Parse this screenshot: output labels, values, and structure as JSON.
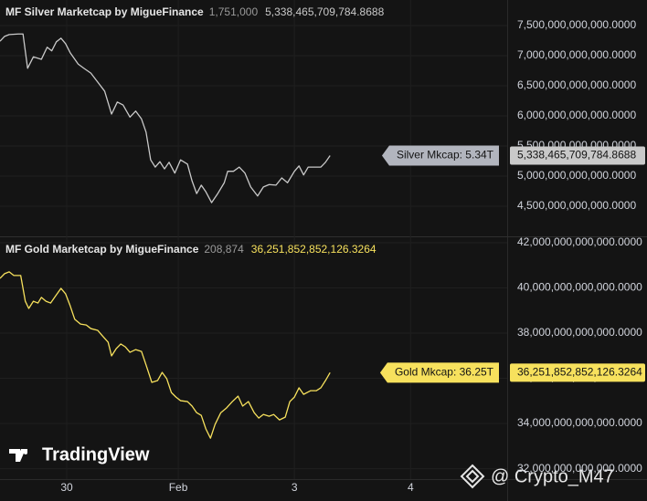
{
  "chart_data": [
    {
      "type": "line",
      "title": "MF Silver Marketcap by MigueFinance",
      "header_values": [
        "1,751,000",
        "5,338,465,709,784.8688"
      ],
      "series_label": "Silver Mkcap: 5.34T",
      "price_label": "5,338,465,709,784.8688",
      "color": "#c9c9c9",
      "grid": true,
      "x": [
        -0.58,
        -0.54,
        -0.5,
        -0.42,
        -0.38,
        -0.34,
        -0.29,
        -0.22,
        -0.17,
        -0.13,
        -0.09,
        -0.05,
        -0.01,
        0.03,
        0.1,
        0.15,
        0.21,
        0.27,
        0.33,
        0.39,
        0.44,
        0.49,
        0.55,
        0.6,
        0.65,
        0.69,
        0.73,
        0.77,
        0.81,
        0.85,
        0.89,
        0.94,
        0.99,
        1.05,
        1.09,
        1.13,
        1.17,
        1.21,
        1.26,
        1.31,
        1.37,
        1.4,
        1.45,
        1.5,
        1.55,
        1.6,
        1.66,
        1.71,
        1.76,
        1.82,
        1.87,
        1.92,
        1.98,
        2.02,
        2.06,
        2.1,
        2.16,
        2.21,
        2.25,
        2.29
      ],
      "values": [
        7240000000000.0,
        7320000000000.0,
        7350000000000.0,
        7360000000000.0,
        7360000000000.0,
        6790000000000.0,
        6980000000000.0,
        6940000000000.0,
        7140000000000.0,
        7080000000000.0,
        7230000000000.0,
        7290000000000.0,
        7200000000000.0,
        7050000000000.0,
        6860000000000.0,
        6790000000000.0,
        6710000000000.0,
        6560000000000.0,
        6410000000000.0,
        6030000000000.0,
        6230000000000.0,
        6180000000000.0,
        5980000000000.0,
        6080000000000.0,
        5950000000000.0,
        5730000000000.0,
        5270000000000.0,
        5150000000000.0,
        5240000000000.0,
        5120000000000.0,
        5230000000000.0,
        5050000000000.0,
        5270000000000.0,
        5200000000000.0,
        4920000000000.0,
        4710000000000.0,
        4850000000000.0,
        4740000000000.0,
        4560000000000.0,
        4700000000000.0,
        4890000000000.0,
        5080000000000.0,
        5080000000000.0,
        5150000000000.0,
        5050000000000.0,
        4820000000000.0,
        4670000000000.0,
        4820000000000.0,
        4860000000000.0,
        4850000000000.0,
        4970000000000.0,
        4890000000000.0,
        5080000000000.0,
        5170000000000.0,
        5020000000000.0,
        5150000000000.0,
        5150000000000.0,
        5150000000000.0,
        5230000000000.0,
        5340000000000.0
      ],
      "xlim": [
        -0.58,
        3.83
      ],
      "ylim": [
        4015000000000.0,
        7924000000000.0
      ],
      "yticks": [
        {
          "value": 7500000000000.0,
          "label": "7,500,000,000,000.0000"
        },
        {
          "value": 7000000000000.0,
          "label": "7,000,000,000,000.0000"
        },
        {
          "value": 6500000000000.0,
          "label": "6,500,000,000,000.0000"
        },
        {
          "value": 6000000000000.0,
          "label": "6,000,000,000,000.0000"
        },
        {
          "value": 5500000000000.0,
          "label": "5,500,000,000,000.0000"
        },
        {
          "value": 5000000000000.0,
          "label": "5,000,000,000,000.0000"
        },
        {
          "value": 4500000000000.0,
          "label": "4,500,000,000,000.0000"
        }
      ]
    },
    {
      "type": "line",
      "title": "MF Gold Marketcap by MigueFinance",
      "header_values": [
        "208,874",
        "36,251,852,852,126.3264"
      ],
      "series_label": "Gold Mkcap: 36.25T",
      "price_label": "36,251,852,852,126.3264",
      "color": "#f7e15d",
      "grid": true,
      "x": [
        -0.58,
        -0.54,
        -0.5,
        -0.46,
        -0.4,
        -0.36,
        -0.33,
        -0.29,
        -0.25,
        -0.22,
        -0.18,
        -0.14,
        -0.1,
        -0.05,
        -0.01,
        0.03,
        0.07,
        0.12,
        0.17,
        0.21,
        0.27,
        0.31,
        0.36,
        0.39,
        0.43,
        0.47,
        0.51,
        0.55,
        0.6,
        0.65,
        0.69,
        0.74,
        0.79,
        0.83,
        0.87,
        0.91,
        0.95,
        0.99,
        1.05,
        1.09,
        1.13,
        1.17,
        1.21,
        1.25,
        1.29,
        1.34,
        1.39,
        1.44,
        1.49,
        1.53,
        1.58,
        1.63,
        1.67,
        1.71,
        1.76,
        1.8,
        1.85,
        1.9,
        1.94,
        1.98,
        2.02,
        2.06,
        2.12,
        2.17,
        2.21,
        2.25,
        2.29
      ],
      "values": [
        40420000000000.0,
        40630000000000.0,
        40710000000000.0,
        40550000000000.0,
        40550000000000.0,
        39410000000000.0,
        39090000000000.0,
        39410000000000.0,
        39330000000000.0,
        39580000000000.0,
        39410000000000.0,
        39330000000000.0,
        39620000000000.0,
        39980000000000.0,
        39740000000000.0,
        39210000000000.0,
        38610000000000.0,
        38400000000000.0,
        38360000000000.0,
        38200000000000.0,
        38120000000000.0,
        37880000000000.0,
        37600000000000.0,
        36990000000000.0,
        37310000000000.0,
        37520000000000.0,
        37390000000000.0,
        37150000000000.0,
        37270000000000.0,
        37190000000000.0,
        36590000000000.0,
        35820000000000.0,
        35900000000000.0,
        36260000000000.0,
        35980000000000.0,
        35370000000000.0,
        35170000000000.0,
        35010000000000.0,
        34970000000000.0,
        34770000000000.0,
        34480000000000.0,
        34360000000000.0,
        33760000000000.0,
        33350000000000.0,
        33960000000000.0,
        34480000000000.0,
        34690000000000.0,
        34970000000000.0,
        35210000000000.0,
        34770000000000.0,
        34970000000000.0,
        34480000000000.0,
        34240000000000.0,
        34400000000000.0,
        34320000000000.0,
        34400000000000.0,
        34160000000000.0,
        34280000000000.0,
        34970000000000.0,
        35170000000000.0,
        35580000000000.0,
        35290000000000.0,
        35450000000000.0,
        35450000000000.0,
        35580000000000.0,
        35900000000000.0,
        36250000000000.0
      ],
      "xlim": [
        -0.58,
        3.83
      ],
      "ylim": [
        31540000000000.0,
        42240000000000.0
      ],
      "yticks": [
        {
          "value": 42000000000000.0,
          "label": "42,000,000,000,000.0000"
        },
        {
          "value": 40000000000000.0,
          "label": "40,000,000,000,000.0000"
        },
        {
          "value": 38000000000000.0,
          "label": "38,000,000,000,000.0000"
        },
        {
          "value": 36000000000000.0,
          "label": "36,000,000,000,000.0000"
        },
        {
          "value": 34000000000000.0,
          "label": "34,000,000,000,000.0000"
        },
        {
          "value": 32000000000000.0,
          "label": "32,000,000,000,000.0000"
        }
      ],
      "xticks": [
        {
          "value": 0,
          "label": "30"
        },
        {
          "value": 0.97,
          "label": "Feb"
        },
        {
          "value": 1.98,
          "label": "3"
        },
        {
          "value": 2.99,
          "label": "4"
        }
      ]
    }
  ],
  "branding": "TradingView",
  "watermark": "@ Crypto_M47"
}
